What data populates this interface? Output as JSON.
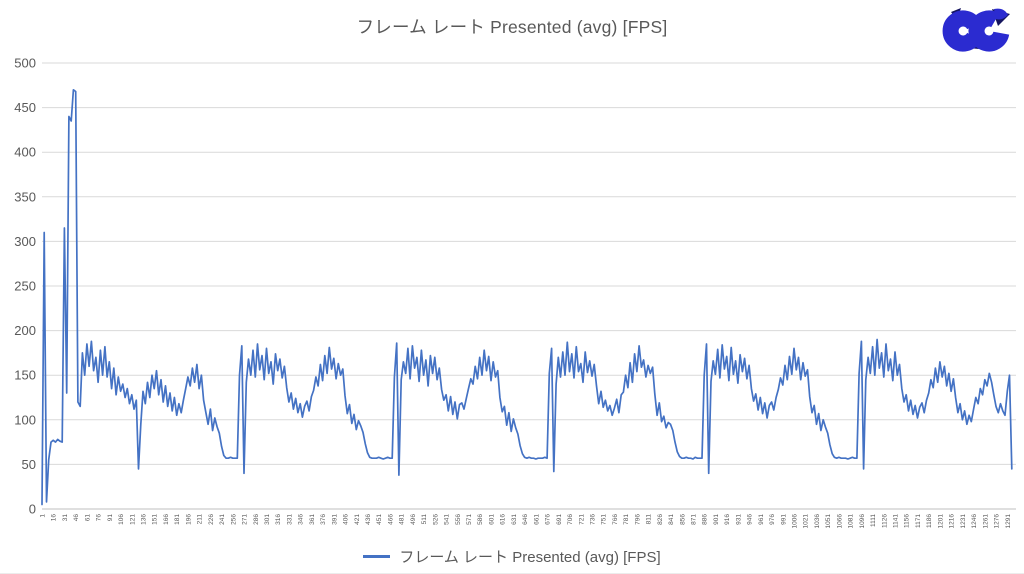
{
  "title": "フレーム レート Presented (avg) [FPS]",
  "legend": {
    "label": "フレーム レート Presented (avg) [FPS]"
  },
  "logo": {
    "name": "cc-ribbon-logo",
    "blue": "#2B2BD0",
    "navy": "#15155F"
  },
  "colors": {
    "series": "#4472C4",
    "grid": "#D9D9D9",
    "axis_line": "#BFBFBF",
    "axis_text": "#595959",
    "background": "#FFFFFF"
  },
  "chart_data": {
    "type": "line",
    "title": "フレーム レート Presented (avg) [FPS]",
    "xlabel": "",
    "ylabel": "",
    "ylim": [
      0,
      500
    ],
    "y_ticks": [
      0,
      50,
      100,
      150,
      200,
      250,
      300,
      350,
      400,
      450,
      500
    ],
    "grid": "horizontal",
    "legend_position": "bottom",
    "x_tick_labels": [
      1,
      16,
      31,
      46,
      61,
      76,
      91,
      106,
      121,
      136,
      151,
      166,
      181,
      196,
      211,
      226,
      241,
      256,
      271,
      286,
      301,
      316,
      331,
      346,
      361,
      376,
      391,
      406,
      421,
      436,
      451,
      466,
      481,
      496,
      511,
      526,
      541,
      556,
      571,
      586,
      601,
      616,
      631,
      646,
      661,
      676,
      691,
      706,
      721,
      736,
      751,
      766,
      781,
      796,
      811,
      826,
      841,
      856,
      871,
      886,
      901,
      916,
      931,
      946,
      961,
      976,
      991,
      1006,
      1021,
      1036,
      1051,
      1066,
      1081,
      1096,
      1111,
      1126,
      1141,
      1156,
      1171,
      1186,
      1201,
      1216,
      1231,
      1246,
      1261,
      1276,
      1291
    ],
    "x_range": [
      1,
      1300
    ],
    "series": [
      {
        "name": "フレーム レート Presented (avg) [FPS]",
        "color": "#4472C4",
        "x_start": 1,
        "x_step": 3,
        "values": [
          5,
          310,
          8,
          55,
          75,
          77,
          75,
          78,
          76,
          75,
          315,
          130,
          440,
          435,
          470,
          468,
          120,
          115,
          175,
          150,
          185,
          160,
          188,
          155,
          170,
          142,
          178,
          150,
          182,
          148,
          165,
          135,
          158,
          128,
          148,
          132,
          140,
          125,
          135,
          118,
          128,
          112,
          122,
          45,
          95,
          132,
          118,
          142,
          125,
          150,
          135,
          155,
          128,
          145,
          120,
          138,
          115,
          130,
          110,
          125,
          105,
          118,
          108,
          122,
          135,
          148,
          138,
          158,
          142,
          162,
          135,
          150,
          122,
          108,
          95,
          112,
          88,
          102,
          92,
          85,
          70,
          60,
          57,
          57,
          58,
          57,
          57,
          57,
          150,
          183,
          40,
          142,
          168,
          150,
          178,
          148,
          185,
          156,
          172,
          145,
          180,
          152,
          165,
          140,
          174,
          155,
          168,
          147,
          160,
          136,
          120,
          130,
          112,
          124,
          108,
          118,
          103,
          115,
          121,
          110,
          126,
          133,
          148,
          138,
          162,
          144,
          172,
          152,
          181,
          157,
          169,
          146,
          163,
          150,
          157,
          127,
          107,
          117,
          96,
          106,
          89,
          99,
          93,
          86,
          73,
          63,
          58,
          57,
          57,
          57,
          58,
          57,
          56,
          57,
          58,
          57,
          57,
          148,
          186,
          38,
          145,
          165,
          152,
          180,
          146,
          183,
          158,
          170,
          143,
          178,
          150,
          167,
          138,
          172,
          152,
          170,
          145,
          158,
          134,
          122,
          128,
          110,
          126,
          106,
          120,
          101,
          117,
          119,
          112,
          124,
          135,
          146,
          140,
          160,
          146,
          170,
          150,
          178,
          155,
          171,
          144,
          165,
          148,
          155,
          125,
          109,
          115,
          94,
          108,
          87,
          101,
          91,
          84,
          71,
          62,
          58,
          57,
          58,
          57,
          57,
          56,
          57,
          57,
          57,
          58,
          57,
          152,
          180,
          42,
          140,
          170,
          148,
          176,
          150,
          187,
          154,
          174,
          147,
          182,
          154,
          163,
          142,
          176,
          153,
          166,
          149,
          162,
          138,
          118,
          132,
          114,
          122,
          110,
          116,
          105,
          113,
          123,
          108,
          128,
          131,
          150,
          136,
          164,
          142,
          174,
          154,
          183,
          159,
          167,
          148,
          161,
          152,
          159,
          129,
          105,
          119,
          98,
          104,
          91,
          97,
          95,
          88,
          75,
          64,
          59,
          57,
          57,
          58,
          57,
          57,
          56,
          58,
          57,
          57,
          57,
          150,
          185,
          40,
          143,
          166,
          151,
          179,
          147,
          184,
          157,
          171,
          144,
          181,
          151,
          166,
          141,
          173,
          154,
          169,
          146,
          161,
          135,
          121,
          129,
          111,
          125,
          107,
          119,
          102,
          116,
          120,
          111,
          125,
          134,
          147,
          139,
          161,
          145,
          171,
          151,
          180,
          156,
          170,
          145,
          164,
          149,
          156,
          126,
          108,
          116,
          95,
          107,
          88,
          100,
          92,
          85,
          72,
          62,
          58,
          57,
          58,
          57,
          57,
          57,
          56,
          57,
          58,
          57,
          57,
          152,
          188,
          45,
          145,
          170,
          152,
          182,
          150,
          190,
          158,
          175,
          148,
          185,
          155,
          168,
          144,
          176,
          150,
          162,
          135,
          120,
          128,
          110,
          122,
          106,
          116,
          102,
          114,
          119,
          108,
          122,
          130,
          145,
          136,
          158,
          142,
          165,
          148,
          160,
          138,
          152,
          132,
          146,
          125,
          108,
          118,
          100,
          110,
          95,
          105,
          98,
          112,
          125,
          118,
          135,
          128,
          145,
          138,
          152,
          142,
          128,
          115,
          108,
          118,
          110,
          105,
          132,
          150,
          45
        ]
      }
    ]
  }
}
